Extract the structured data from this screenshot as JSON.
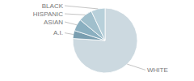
{
  "chart_data": {
    "type": "pie",
    "categories": [
      "WHITE",
      "A.I.",
      "ASIAN",
      "HISPANIC",
      "BLACK"
    ],
    "values": [
      76,
      4,
      6,
      7,
      7
    ],
    "colors": [
      "#ccd9e0",
      "#7a9eb0",
      "#8aafc0",
      "#a0bfcc",
      "#b8d0da"
    ]
  }
}
